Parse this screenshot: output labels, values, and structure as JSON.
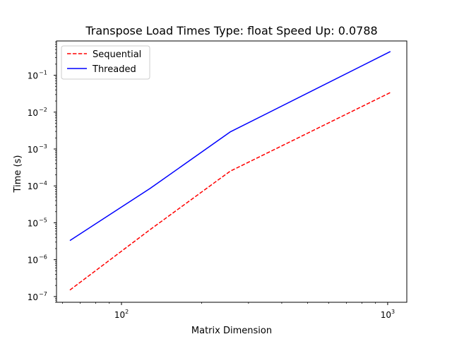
{
  "chart_data": {
    "type": "line",
    "title": "Transpose Load Times Type: float  Speed Up: 0.0788",
    "xlabel": "Matrix Dimension",
    "ylabel": "Time (s)",
    "xscale": "log",
    "yscale": "log",
    "xlim": [
      57,
      1180
    ],
    "ylim": [
      7e-08,
      0.85
    ],
    "x_major_ticks": [
      {
        "value": 100,
        "base": "10",
        "exp": "2"
      },
      {
        "value": 1000,
        "base": "10",
        "exp": "3"
      }
    ],
    "y_major_ticks": [
      {
        "value": 1e-07,
        "base": "10",
        "exp": "−7"
      },
      {
        "value": 1e-06,
        "base": "10",
        "exp": "−6"
      },
      {
        "value": 1e-05,
        "base": "10",
        "exp": "−5"
      },
      {
        "value": 0.0001,
        "base": "10",
        "exp": "−4"
      },
      {
        "value": 0.001,
        "base": "10",
        "exp": "−3"
      },
      {
        "value": 0.01,
        "base": "10",
        "exp": "−2"
      },
      {
        "value": 0.1,
        "base": "10",
        "exp": "−1"
      }
    ],
    "legend_position": "top-left",
    "grid": false,
    "x": [
      64,
      128,
      256,
      1024
    ],
    "series": [
      {
        "name": "Sequential",
        "color": "#ff0000",
        "dash": "dashed",
        "values": [
          1.5e-07,
          6.5e-06,
          0.00025,
          0.034
        ]
      },
      {
        "name": "Threaded",
        "color": "#0000ff",
        "dash": "solid",
        "values": [
          3.3e-06,
          8.5e-05,
          0.0029,
          0.44
        ]
      }
    ]
  }
}
